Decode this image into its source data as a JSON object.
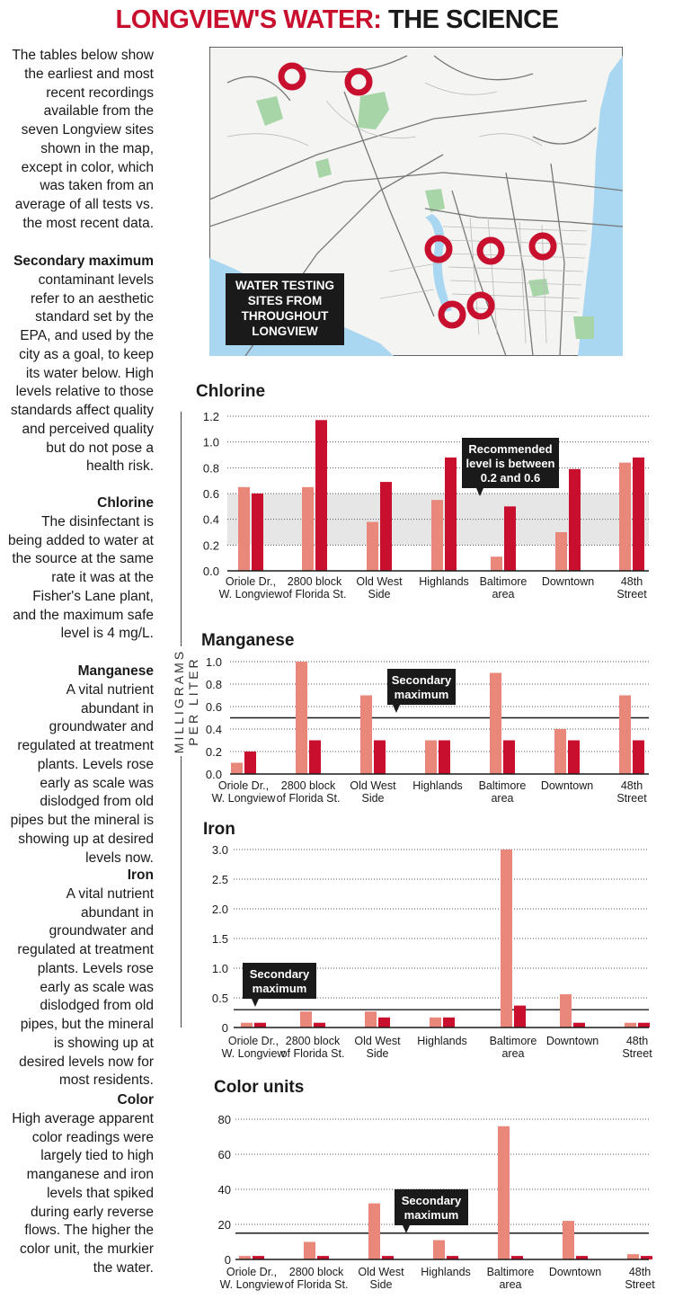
{
  "title": {
    "part1": "LONGVIEW'S WATER:",
    "part2": " THE SCIENCE"
  },
  "sidebar": {
    "intro": "The tables below show the earliest and most recent recordings available from the seven Longview sites shown in the map, except in color, which was taken from an average of all tests vs. the most recent data.",
    "secondary_head": "Secondary maximum",
    "secondary_body": "contaminant levels refer to an aesthetic standard set by the EPA, and used by the city as a goal, to keep its water below.  High levels relative to those standards affect quality and perceived quality but do not pose a health risk.",
    "chlorine_head": "Chlorine",
    "chlorine_body": "The disinfectant is being added to water at the source at the same rate it was at the Fisher's Lane plant, and the maximum safe level is 4 mg/L.",
    "manganese_head": "Manganese",
    "manganese_body": "A vital nutrient abundant in groundwater and regulated at treatment plants. Levels rose early as scale was dislodged from old pipes but the mineral is showing up at desired levels now.",
    "iron_head": "Iron",
    "iron_body": "A vital nutrient abundant in groundwater and regulated at treatment plants. Levels rose early as scale was dislodged from old pipes, but the mineral is showing up at desired levels now for most residents.",
    "color_head": "Color",
    "color_body": "High average apparent color readings were largely tied to high manganese and iron levels that spiked during early reverse flows. The higher the color unit, the murkier the water."
  },
  "y_axis_label": "MILLIGRAMS PER LITER",
  "map": {
    "label_lines": [
      "WATER TESTING",
      "SITES FROM",
      "THROUGHOUT",
      "LONGVIEW"
    ]
  },
  "colors": {
    "red": "#c8102e",
    "earliest": "#e8877a",
    "recent": "#c8102e",
    "band": "#e6e6e6",
    "callout": "#1a1a1a",
    "water": "#a9d6f0",
    "park": "#a8d5a8"
  },
  "chart_data": [
    {
      "type": "bar",
      "title": "Chlorine",
      "categories": [
        [
          "Oriole Dr.,",
          "W. Longview"
        ],
        [
          "2800 block",
          "of Florida St."
        ],
        [
          "Old West",
          "Side"
        ],
        [
          "Highlands"
        ],
        [
          "Baltimore",
          "area"
        ],
        [
          "Downtown"
        ],
        [
          "48th",
          "Street"
        ]
      ],
      "series": [
        {
          "values": [
            0.65,
            0.65,
            0.38,
            0.55,
            0.11,
            0.3,
            0.84
          ]
        },
        {
          "values": [
            0.6,
            1.17,
            0.69,
            0.88,
            0.5,
            0.79,
            0.88
          ]
        }
      ],
      "yticks": [
        "0.0",
        "0.2",
        "0.4",
        "0.6",
        "0.8",
        "1.0",
        "1.2"
      ],
      "ylim": [
        0,
        1.2
      ],
      "band": [
        0.2,
        0.6
      ],
      "callout": [
        "Recommended",
        "level is between",
        "0.2 and 0.6"
      ]
    },
    {
      "type": "bar",
      "title": "Manganese",
      "categories": [
        [
          "Oriole Dr.,",
          "W. Longview"
        ],
        [
          "2800 block",
          "of Florida St."
        ],
        [
          "Old West",
          "Side"
        ],
        [
          "Highlands"
        ],
        [
          "Baltimore",
          "area"
        ],
        [
          "Downtown"
        ],
        [
          "48th",
          "Street"
        ]
      ],
      "series": [
        {
          "values": [
            0.1,
            1.0,
            0.7,
            0.3,
            0.9,
            0.4,
            0.7
          ]
        },
        {
          "values": [
            0.2,
            0.3,
            0.3,
            0.3,
            0.3,
            0.3,
            0.3
          ]
        }
      ],
      "yticks": [
        "0.0",
        "0.2",
        "0.4",
        "0.6",
        "0.8",
        "1.0"
      ],
      "ylim": [
        0,
        1.0
      ],
      "line": 0.5,
      "callout": [
        "Secondary",
        "maximum"
      ]
    },
    {
      "type": "bar",
      "title": "Iron",
      "categories": [
        [
          "Oriole Dr.,",
          "W. Longview"
        ],
        [
          "2800 block",
          "of Florida St."
        ],
        [
          "Old West",
          "Side"
        ],
        [
          "Highlands"
        ],
        [
          "Baltimore",
          "area"
        ],
        [
          "Downtown"
        ],
        [
          "48th",
          "Street"
        ]
      ],
      "series": [
        {
          "values": [
            0.08,
            0.27,
            0.27,
            0.17,
            3.0,
            0.56,
            0.08
          ]
        },
        {
          "values": [
            0.08,
            0.08,
            0.17,
            0.17,
            0.37,
            0.08,
            0.08
          ]
        }
      ],
      "yticks": [
        "0",
        "0.5",
        "1.0",
        "1.5",
        "2.0",
        "2.5",
        "3.0"
      ],
      "ylim": [
        0,
        3.0
      ],
      "line": 0.3,
      "callout": [
        "Secondary",
        "maximum"
      ]
    },
    {
      "type": "bar",
      "title": "Color units",
      "categories": [
        [
          "Oriole Dr.,",
          "W. Longview"
        ],
        [
          "2800 block",
          "of Florida St."
        ],
        [
          "Old West",
          "Side"
        ],
        [
          "Highlands"
        ],
        [
          "Baltimore",
          "area"
        ],
        [
          "Downtown"
        ],
        [
          "48th",
          "Street"
        ]
      ],
      "series": [
        {
          "values": [
            2,
            10,
            32,
            11,
            76,
            22,
            3
          ]
        },
        {
          "values": [
            2,
            2,
            2,
            2,
            2,
            2,
            2
          ]
        }
      ],
      "yticks": [
        "0",
        "20",
        "40",
        "60",
        "80"
      ],
      "ylim": [
        0,
        80
      ],
      "line": 15,
      "callout": [
        "Secondary",
        "maximum"
      ]
    }
  ]
}
